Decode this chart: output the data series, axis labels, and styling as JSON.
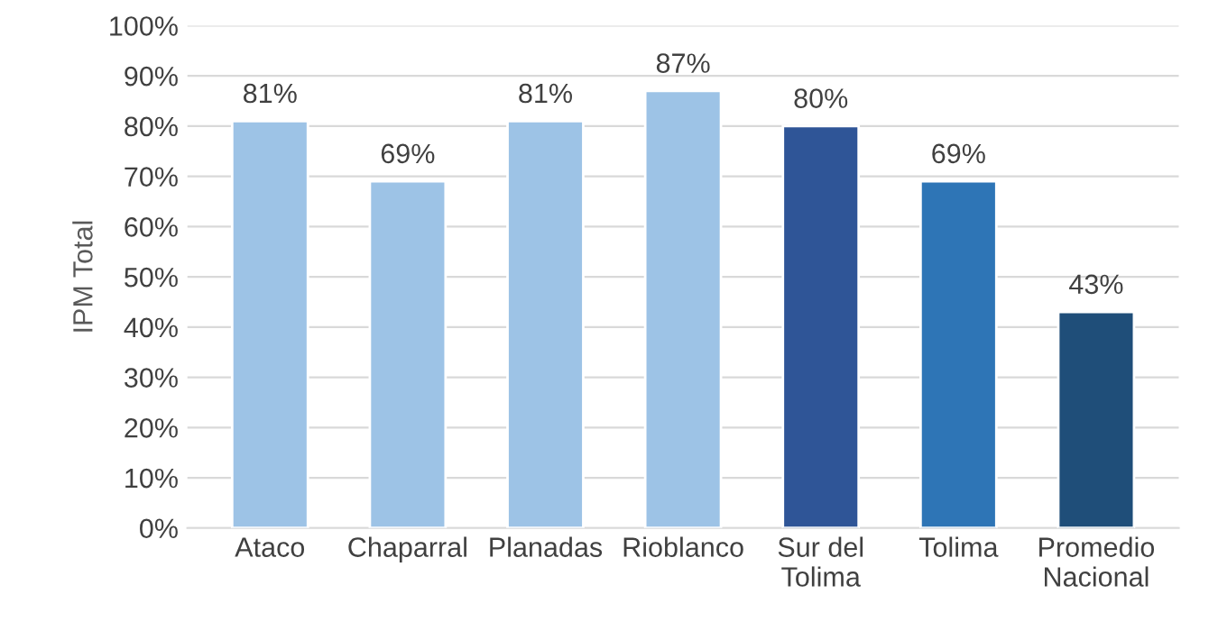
{
  "chart_data": {
    "type": "bar",
    "ylabel": "IPM Total",
    "categories": [
      "Ataco",
      "Chaparral",
      "Planadas",
      "Rioblanco",
      "Sur del\nTolima",
      "Tolima",
      "Promedio\nNacional"
    ],
    "values": [
      81,
      69,
      81,
      87,
      80,
      69,
      43
    ],
    "value_labels": [
      "81%",
      "69%",
      "81%",
      "87%",
      "80%",
      "69%",
      "43%"
    ],
    "colors": [
      "#9dc3e6",
      "#9dc3e6",
      "#9dc3e6",
      "#9dc3e6",
      "#2f5597",
      "#2e75b6",
      "#1f4e79"
    ],
    "ylim": [
      0,
      100
    ],
    "yticks": [
      {
        "value": 0,
        "label": "0%"
      },
      {
        "value": 10,
        "label": "10%"
      },
      {
        "value": 20,
        "label": "20%"
      },
      {
        "value": 30,
        "label": "30%"
      },
      {
        "value": 40,
        "label": "40%"
      },
      {
        "value": 50,
        "label": "50%"
      },
      {
        "value": 60,
        "label": "60%"
      },
      {
        "value": 70,
        "label": "70%"
      },
      {
        "value": 80,
        "label": "80%"
      },
      {
        "value": 90,
        "label": "90%"
      },
      {
        "value": 100,
        "label": "100%"
      }
    ],
    "grid": "y",
    "legend": false
  }
}
